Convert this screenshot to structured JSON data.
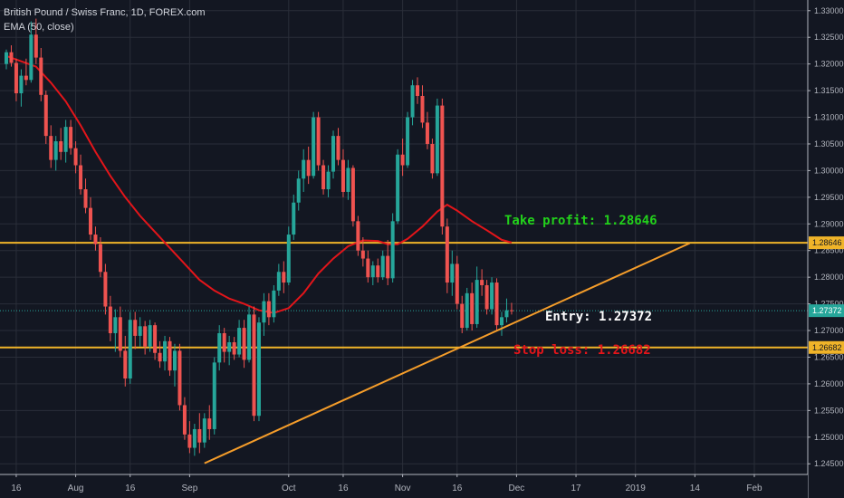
{
  "legend": {
    "symbol_line": "British Pound / Swiss Franc, 1D, FOREX.com",
    "indicator_line": "EMA (50, close)"
  },
  "colors": {
    "background": "#131722",
    "grid": "#2a2e39",
    "axis_text": "#b2b5be",
    "up_candle": "#26a69a",
    "down_candle": "#ef5350",
    "ema": "#e3151a",
    "horizontal_level": "#f0b429",
    "trendline": "#f59d2a",
    "take_profit_text": "#22d11b",
    "entry_text": "#ffffff",
    "stop_loss_text": "#e3151a",
    "price_label": "#26a69a"
  },
  "annotations": {
    "take_profit": "Take profit: 1.28646",
    "entry": "Entry: 1.27372",
    "stop_loss": "Stop loss: 1.26682"
  },
  "chart_data": {
    "type": "candlestick",
    "symbol": "British Pound / Swiss Franc",
    "timeframe": "1D",
    "source": "FOREX.com",
    "indicator": "EMA (50, close)",
    "ylim": [
      1.243,
      1.332
    ],
    "y_ticks": [
      "1.24500",
      "1.25000",
      "1.25500",
      "1.26000",
      "1.26500",
      "1.27000",
      "1.27500",
      "1.28000",
      "1.28500",
      "1.29000",
      "1.29500",
      "1.30000",
      "1.30500",
      "1.31000",
      "1.31500",
      "1.32000",
      "1.32500",
      "1.33000"
    ],
    "x_ticks": [
      {
        "label": "16",
        "bar": 2
      },
      {
        "label": "Aug",
        "bar": 14
      },
      {
        "label": "16",
        "bar": 25
      },
      {
        "label": "Sep",
        "bar": 37
      },
      {
        "label": "Oct",
        "bar": 57
      },
      {
        "label": "16",
        "bar": 68
      },
      {
        "label": "Nov",
        "bar": 80
      },
      {
        "label": "16",
        "bar": 91
      },
      {
        "label": "Dec",
        "bar": 103
      },
      {
        "label": "17",
        "bar": 115
      },
      {
        "label": "2019",
        "bar": 127
      },
      {
        "label": "14",
        "bar": 139
      },
      {
        "label": "Feb",
        "bar": 151
      }
    ],
    "last_bar": 102,
    "total_bars": 162,
    "levels": [
      {
        "name": "take-profit-level",
        "price": 1.28646,
        "label": "1.28646"
      },
      {
        "name": "stop-loss-level",
        "price": 1.26682,
        "label": "1.26682"
      }
    ],
    "current_price": {
      "price": 1.27372,
      "label": "1.27372"
    },
    "trendline": {
      "from": {
        "bar": 40,
        "price": 1.2451
      },
      "to": {
        "bar": 138,
        "price": 1.2864
      }
    },
    "ema_points": [
      [
        0,
        1.3215
      ],
      [
        3,
        1.3205
      ],
      [
        6,
        1.3195
      ],
      [
        9,
        1.3165
      ],
      [
        12,
        1.313
      ],
      [
        15,
        1.3085
      ],
      [
        18,
        1.3035
      ],
      [
        21,
        1.299
      ],
      [
        24,
        1.295
      ],
      [
        27,
        1.2915
      ],
      [
        30,
        1.2885
      ],
      [
        33,
        1.2855
      ],
      [
        36,
        1.2825
      ],
      [
        39,
        1.2795
      ],
      [
        42,
        1.2775
      ],
      [
        45,
        1.276
      ],
      [
        48,
        1.275
      ],
      [
        51,
        1.2738
      ],
      [
        54,
        1.2733
      ],
      [
        57,
        1.2742
      ],
      [
        60,
        1.277
      ],
      [
        63,
        1.2807
      ],
      [
        66,
        1.2835
      ],
      [
        69,
        1.2858
      ],
      [
        72,
        1.2869
      ],
      [
        75,
        1.2868
      ],
      [
        77,
        1.2862
      ],
      [
        79,
        1.2862
      ],
      [
        81,
        1.2872
      ],
      [
        84,
        1.2895
      ],
      [
        87,
        1.2923
      ],
      [
        89,
        1.2936
      ],
      [
        91,
        1.2925
      ],
      [
        94,
        1.2905
      ],
      [
        97,
        1.2888
      ],
      [
        100,
        1.287
      ],
      [
        102,
        1.2865
      ]
    ],
    "candles": [
      [
        1.32,
        1.3227,
        1.319,
        1.3222
      ],
      [
        1.3222,
        1.3235,
        1.3195,
        1.3202
      ],
      [
        1.3202,
        1.321,
        1.313,
        1.3145
      ],
      [
        1.3145,
        1.319,
        1.312,
        1.3178
      ],
      [
        1.3178,
        1.321,
        1.316,
        1.317
      ],
      [
        1.317,
        1.328,
        1.3165,
        1.3255
      ],
      [
        1.3255,
        1.3285,
        1.32,
        1.3212
      ],
      [
        1.3212,
        1.323,
        1.313,
        1.3142
      ],
      [
        1.3142,
        1.315,
        1.305,
        1.3065
      ],
      [
        1.3065,
        1.3085,
        1.3005,
        1.302
      ],
      [
        1.302,
        1.3065,
        1.3,
        1.3055
      ],
      [
        1.3055,
        1.308,
        1.302,
        1.3035
      ],
      [
        1.3035,
        1.3095,
        1.3015,
        1.3082
      ],
      [
        1.3082,
        1.3095,
        1.303,
        1.3042
      ],
      [
        1.3042,
        1.3055,
        1.2995,
        1.301
      ],
      [
        1.301,
        1.303,
        1.2955,
        1.2965
      ],
      [
        1.2965,
        1.2985,
        1.292,
        1.293
      ],
      [
        1.293,
        1.295,
        1.287,
        1.288
      ],
      [
        1.288,
        1.2895,
        1.285,
        1.2862
      ],
      [
        1.2862,
        1.2875,
        1.28,
        1.281
      ],
      [
        1.281,
        1.2825,
        1.273,
        1.2745
      ],
      [
        1.2745,
        1.2765,
        1.268,
        1.2695
      ],
      [
        1.2695,
        1.274,
        1.266,
        1.2725
      ],
      [
        1.2725,
        1.2745,
        1.265,
        1.2662
      ],
      [
        1.2662,
        1.269,
        1.2595,
        1.261
      ],
      [
        1.261,
        1.2735,
        1.26,
        1.272
      ],
      [
        1.272,
        1.2735,
        1.2665,
        1.269
      ],
      [
        1.269,
        1.2725,
        1.267,
        1.2708
      ],
      [
        1.2708,
        1.2718,
        1.2655,
        1.267
      ],
      [
        1.267,
        1.272,
        1.266,
        1.271
      ],
      [
        1.271,
        1.2715,
        1.2645,
        1.2658
      ],
      [
        1.2658,
        1.268,
        1.263,
        1.2642
      ],
      [
        1.2642,
        1.269,
        1.2625,
        1.268
      ],
      [
        1.268,
        1.2688,
        1.2615,
        1.2625
      ],
      [
        1.2625,
        1.2675,
        1.2595,
        1.2662
      ],
      [
        1.2662,
        1.2675,
        1.255,
        1.256
      ],
      [
        1.256,
        1.2575,
        1.2495,
        1.2505
      ],
      [
        1.2505,
        1.253,
        1.247,
        1.248
      ],
      [
        1.248,
        1.2525,
        1.2465,
        1.2515
      ],
      [
        1.2515,
        1.2545,
        1.247,
        1.249
      ],
      [
        1.249,
        1.2545,
        1.248,
        1.2535
      ],
      [
        1.2535,
        1.256,
        1.2495,
        1.2515
      ],
      [
        1.2515,
        1.265,
        1.2505,
        1.264
      ],
      [
        1.264,
        1.271,
        1.2625,
        1.2695
      ],
      [
        1.2695,
        1.2705,
        1.264,
        1.266
      ],
      [
        1.266,
        1.269,
        1.2635,
        1.2678
      ],
      [
        1.2678,
        1.2688,
        1.2645,
        1.2655
      ],
      [
        1.2655,
        1.272,
        1.265,
        1.2705
      ],
      [
        1.2705,
        1.272,
        1.263,
        1.2645
      ],
      [
        1.2645,
        1.2745,
        1.264,
        1.273
      ],
      [
        1.273,
        1.2745,
        1.253,
        1.254
      ],
      [
        1.254,
        1.2725,
        1.253,
        1.2715
      ],
      [
        1.2715,
        1.277,
        1.269,
        1.2755
      ],
      [
        1.2755,
        1.277,
        1.271,
        1.2725
      ],
      [
        1.2725,
        1.2785,
        1.2715,
        1.2775
      ],
      [
        1.2775,
        1.2825,
        1.2765,
        1.281
      ],
      [
        1.281,
        1.283,
        1.277,
        1.279
      ],
      [
        1.279,
        1.2895,
        1.2785,
        1.288
      ],
      [
        1.288,
        1.2955,
        1.287,
        1.294
      ],
      [
        1.294,
        1.3,
        1.2925,
        1.2985
      ],
      [
        1.2985,
        1.304,
        1.296,
        1.302
      ],
      [
        1.302,
        1.3045,
        1.2975,
        1.299
      ],
      [
        1.299,
        1.311,
        1.2985,
        1.31
      ],
      [
        1.31,
        1.311,
        1.3,
        1.301
      ],
      [
        1.301,
        1.302,
        1.2955,
        1.2965
      ],
      [
        1.2965,
        1.301,
        1.295,
        1.2998
      ],
      [
        1.2998,
        1.3075,
        1.2985,
        1.3065
      ],
      [
        1.3065,
        1.308,
        1.301,
        1.302
      ],
      [
        1.302,
        1.304,
        1.295,
        1.296
      ],
      [
        1.296,
        1.302,
        1.2945,
        1.3005
      ],
      [
        1.3005,
        1.301,
        1.2895,
        1.2905
      ],
      [
        1.2905,
        1.2915,
        1.284,
        1.285
      ],
      [
        1.285,
        1.2875,
        1.282,
        1.2835
      ],
      [
        1.2835,
        1.285,
        1.279,
        1.28
      ],
      [
        1.28,
        1.283,
        1.2785,
        1.2822
      ],
      [
        1.2822,
        1.2835,
        1.279,
        1.28
      ],
      [
        1.28,
        1.285,
        1.2795,
        1.284
      ],
      [
        1.284,
        1.287,
        1.2785,
        1.2798
      ],
      [
        1.2798,
        1.292,
        1.279,
        1.2905
      ],
      [
        1.2905,
        1.304,
        1.29,
        1.303
      ],
      [
        1.303,
        1.306,
        1.299,
        1.301
      ],
      [
        1.301,
        1.311,
        1.3005,
        1.31
      ],
      [
        1.31,
        1.317,
        1.3085,
        1.316
      ],
      [
        1.316,
        1.3175,
        1.3125,
        1.314
      ],
      [
        1.314,
        1.316,
        1.308,
        1.309
      ],
      [
        1.309,
        1.311,
        1.304,
        1.305
      ],
      [
        1.305,
        1.306,
        1.2985,
        1.2995
      ],
      [
        1.2995,
        1.3135,
        1.299,
        1.3122
      ],
      [
        1.3122,
        1.3135,
        1.288,
        1.2895
      ],
      [
        1.2895,
        1.291,
        1.277,
        1.279
      ],
      [
        1.279,
        1.285,
        1.2765,
        1.2825
      ],
      [
        1.2825,
        1.284,
        1.274,
        1.275
      ],
      [
        1.275,
        1.2765,
        1.2695,
        1.2705
      ],
      [
        1.2705,
        1.278,
        1.27,
        1.277
      ],
      [
        1.277,
        1.279,
        1.27,
        1.2712
      ],
      [
        1.2712,
        1.282,
        1.2705,
        1.2795
      ],
      [
        1.2795,
        1.2815,
        1.2765,
        1.2785
      ],
      [
        1.2785,
        1.2795,
        1.273,
        1.274
      ],
      [
        1.274,
        1.28,
        1.273,
        1.279
      ],
      [
        1.279,
        1.2798,
        1.27,
        1.271
      ],
      [
        1.271,
        1.2735,
        1.269,
        1.2725
      ],
      [
        1.2725,
        1.276,
        1.2715,
        1.2738
      ],
      [
        1.2738,
        1.2752,
        1.273,
        1.2737
      ]
    ]
  }
}
